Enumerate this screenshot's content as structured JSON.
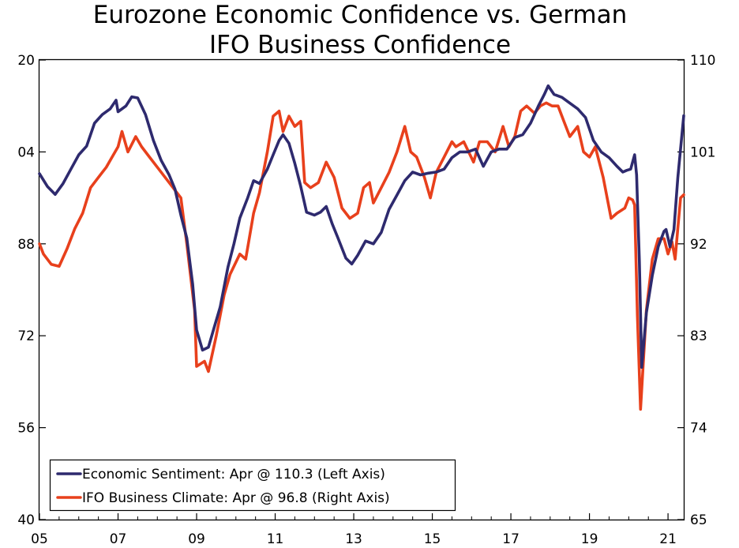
{
  "chart_data": {
    "type": "line",
    "title": [
      "Eurozone Economic Confidence vs. German",
      "IFO Business Confidence"
    ],
    "x_ticks": [
      "05",
      "07",
      "09",
      "11",
      "13",
      "15",
      "17",
      "19",
      "21"
    ],
    "x_range": [
      2005.0,
      2021.4
    ],
    "y_left": {
      "range": [
        40,
        120
      ],
      "ticks": [
        "40",
        "56",
        "72",
        "88",
        "04",
        "20"
      ],
      "tick_values": [
        40,
        56,
        72,
        88,
        104,
        120
      ]
    },
    "y_right": {
      "range": [
        65,
        110
      ],
      "ticks": [
        "65",
        "74",
        "83",
        "92",
        "101",
        "110"
      ],
      "tick_values": [
        65,
        74,
        83,
        92,
        101,
        110
      ]
    },
    "series": [
      {
        "name": "Economic Sentiment",
        "axis": "left",
        "color": "#2E2A6E",
        "legend": "Economic Sentiment: Apr @ 110.3 (Left Axis)",
        "points": [
          [
            2005.0,
            100.2
          ],
          [
            2005.2,
            98.0
          ],
          [
            2005.4,
            96.6
          ],
          [
            2005.6,
            98.5
          ],
          [
            2005.8,
            101.0
          ],
          [
            2006.0,
            103.5
          ],
          [
            2006.2,
            105.0
          ],
          [
            2006.4,
            109.0
          ],
          [
            2006.6,
            110.5
          ],
          [
            2006.8,
            111.5
          ],
          [
            2006.95,
            113.0
          ],
          [
            2007.0,
            111.0
          ],
          [
            2007.2,
            112.0
          ],
          [
            2007.35,
            113.6
          ],
          [
            2007.5,
            113.4
          ],
          [
            2007.7,
            110.5
          ],
          [
            2007.9,
            106.0
          ],
          [
            2008.1,
            102.5
          ],
          [
            2008.3,
            100.0
          ],
          [
            2008.45,
            97.5
          ],
          [
            2008.6,
            93.0
          ],
          [
            2008.75,
            89.0
          ],
          [
            2008.9,
            81.0
          ],
          [
            2009.0,
            73.0
          ],
          [
            2009.15,
            69.5
          ],
          [
            2009.3,
            70.0
          ],
          [
            2009.45,
            73.5
          ],
          [
            2009.6,
            77.0
          ],
          [
            2009.8,
            84.0
          ],
          [
            2009.95,
            88.0
          ],
          [
            2010.1,
            92.5
          ],
          [
            2010.3,
            96.0
          ],
          [
            2010.45,
            99.0
          ],
          [
            2010.6,
            98.5
          ],
          [
            2010.8,
            101.0
          ],
          [
            2010.95,
            103.5
          ],
          [
            2011.1,
            106.0
          ],
          [
            2011.2,
            107.0
          ],
          [
            2011.35,
            105.5
          ],
          [
            2011.5,
            102.0
          ],
          [
            2011.65,
            98.0
          ],
          [
            2011.8,
            93.5
          ],
          [
            2012.0,
            93.0
          ],
          [
            2012.15,
            93.5
          ],
          [
            2012.3,
            94.5
          ],
          [
            2012.45,
            91.5
          ],
          [
            2012.6,
            89.0
          ],
          [
            2012.8,
            85.5
          ],
          [
            2012.95,
            84.5
          ],
          [
            2013.1,
            86.0
          ],
          [
            2013.3,
            88.5
          ],
          [
            2013.5,
            88.0
          ],
          [
            2013.7,
            90.0
          ],
          [
            2013.9,
            94.0
          ],
          [
            2014.1,
            96.5
          ],
          [
            2014.3,
            99.0
          ],
          [
            2014.5,
            100.5
          ],
          [
            2014.7,
            100.0
          ],
          [
            2014.9,
            100.3
          ],
          [
            2015.1,
            100.5
          ],
          [
            2015.3,
            101.0
          ],
          [
            2015.5,
            103.0
          ],
          [
            2015.7,
            104.0
          ],
          [
            2015.9,
            104.0
          ],
          [
            2016.1,
            104.5
          ],
          [
            2016.3,
            101.5
          ],
          [
            2016.5,
            104.0
          ],
          [
            2016.7,
            104.5
          ],
          [
            2016.9,
            104.5
          ],
          [
            2017.1,
            106.5
          ],
          [
            2017.3,
            107.0
          ],
          [
            2017.5,
            109.0
          ],
          [
            2017.7,
            112.0
          ],
          [
            2017.85,
            114.0
          ],
          [
            2017.95,
            115.5
          ],
          [
            2018.1,
            114.0
          ],
          [
            2018.3,
            113.5
          ],
          [
            2018.5,
            112.5
          ],
          [
            2018.7,
            111.5
          ],
          [
            2018.9,
            110.0
          ],
          [
            2019.1,
            106.0
          ],
          [
            2019.3,
            104.0
          ],
          [
            2019.5,
            103.0
          ],
          [
            2019.7,
            101.5
          ],
          [
            2019.85,
            100.5
          ],
          [
            2019.95,
            100.8
          ],
          [
            2020.05,
            101.0
          ],
          [
            2020.15,
            103.5
          ],
          [
            2020.2,
            100.0
          ],
          [
            2020.27,
            85.0
          ],
          [
            2020.33,
            66.5
          ],
          [
            2020.45,
            76.0
          ],
          [
            2020.6,
            82.5
          ],
          [
            2020.75,
            87.5
          ],
          [
            2020.9,
            90.2
          ],
          [
            2020.95,
            90.5
          ],
          [
            2021.05,
            87.5
          ],
          [
            2021.15,
            90.5
          ],
          [
            2021.25,
            99.5
          ],
          [
            2021.4,
            110.3
          ]
        ]
      },
      {
        "name": "IFO Business Climate",
        "axis": "right",
        "color": "#E8401C",
        "legend": "IFO Business Climate: Apr @ 96.8 (Right Axis)",
        "points": [
          [
            2005.0,
            92.0
          ],
          [
            2005.1,
            91.0
          ],
          [
            2005.3,
            90.0
          ],
          [
            2005.5,
            89.8
          ],
          [
            2005.7,
            91.5
          ],
          [
            2005.9,
            93.5
          ],
          [
            2006.1,
            95.0
          ],
          [
            2006.3,
            97.5
          ],
          [
            2006.5,
            98.5
          ],
          [
            2006.7,
            99.5
          ],
          [
            2006.85,
            100.5
          ],
          [
            2007.0,
            101.5
          ],
          [
            2007.1,
            103.0
          ],
          [
            2007.25,
            101.0
          ],
          [
            2007.45,
            102.5
          ],
          [
            2007.6,
            101.5
          ],
          [
            2007.8,
            100.5
          ],
          [
            2008.0,
            99.5
          ],
          [
            2008.2,
            98.5
          ],
          [
            2008.4,
            97.5
          ],
          [
            2008.6,
            96.5
          ],
          [
            2008.75,
            92.0
          ],
          [
            2008.95,
            85.5
          ],
          [
            2009.0,
            80.0
          ],
          [
            2009.2,
            80.5
          ],
          [
            2009.3,
            79.5
          ],
          [
            2009.5,
            83.0
          ],
          [
            2009.7,
            87.0
          ],
          [
            2009.85,
            89.0
          ],
          [
            2010.1,
            91.0
          ],
          [
            2010.25,
            90.5
          ],
          [
            2010.45,
            95.0
          ],
          [
            2010.6,
            97.0
          ],
          [
            2010.8,
            101.0
          ],
          [
            2010.95,
            104.5
          ],
          [
            2011.1,
            105.0
          ],
          [
            2011.2,
            103.0
          ],
          [
            2011.35,
            104.5
          ],
          [
            2011.5,
            103.5
          ],
          [
            2011.65,
            104.0
          ],
          [
            2011.75,
            98.0
          ],
          [
            2011.9,
            97.5
          ],
          [
            2012.1,
            98.0
          ],
          [
            2012.3,
            100.0
          ],
          [
            2012.5,
            98.5
          ],
          [
            2012.7,
            95.5
          ],
          [
            2012.9,
            94.5
          ],
          [
            2013.1,
            95.0
          ],
          [
            2013.25,
            97.5
          ],
          [
            2013.4,
            98.0
          ],
          [
            2013.5,
            96.0
          ],
          [
            2013.7,
            97.5
          ],
          [
            2013.9,
            99.0
          ],
          [
            2014.1,
            101.0
          ],
          [
            2014.3,
            103.5
          ],
          [
            2014.45,
            101.0
          ],
          [
            2014.6,
            100.5
          ],
          [
            2014.8,
            98.5
          ],
          [
            2014.95,
            96.5
          ],
          [
            2015.1,
            99.0
          ],
          [
            2015.3,
            100.5
          ],
          [
            2015.5,
            102.0
          ],
          [
            2015.6,
            101.5
          ],
          [
            2015.8,
            102.0
          ],
          [
            2016.05,
            100.0
          ],
          [
            2016.2,
            102.0
          ],
          [
            2016.4,
            102.0
          ],
          [
            2016.6,
            101.0
          ],
          [
            2016.8,
            103.5
          ],
          [
            2016.95,
            101.5
          ],
          [
            2017.1,
            102.5
          ],
          [
            2017.25,
            105.0
          ],
          [
            2017.4,
            105.5
          ],
          [
            2017.6,
            104.8
          ],
          [
            2017.75,
            105.5
          ],
          [
            2017.9,
            105.8
          ],
          [
            2018.05,
            105.5
          ],
          [
            2018.2,
            105.5
          ],
          [
            2018.35,
            104.0
          ],
          [
            2018.5,
            102.5
          ],
          [
            2018.7,
            103.5
          ],
          [
            2018.85,
            101.0
          ],
          [
            2019.0,
            100.5
          ],
          [
            2019.15,
            101.5
          ],
          [
            2019.35,
            98.5
          ],
          [
            2019.55,
            94.5
          ],
          [
            2019.7,
            95.0
          ],
          [
            2019.9,
            95.5
          ],
          [
            2020.0,
            96.5
          ],
          [
            2020.1,
            96.3
          ],
          [
            2020.15,
            95.8
          ],
          [
            2020.22,
            85.0
          ],
          [
            2020.3,
            75.8
          ],
          [
            2020.45,
            85.5
          ],
          [
            2020.6,
            90.5
          ],
          [
            2020.75,
            92.5
          ],
          [
            2020.9,
            92.5
          ],
          [
            2021.0,
            91.0
          ],
          [
            2021.1,
            92.2
          ],
          [
            2021.18,
            90.5
          ],
          [
            2021.25,
            93.5
          ],
          [
            2021.32,
            96.5
          ],
          [
            2021.4,
            96.8
          ]
        ]
      }
    ]
  }
}
